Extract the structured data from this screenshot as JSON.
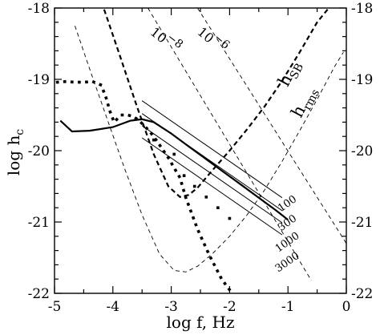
{
  "chart_data": {
    "type": "line",
    "title": "",
    "xlabel": "log  f,  Hz",
    "ylabel": "log  h",
    "ylabel_subscript": "c",
    "xlim": [
      -5,
      0
    ],
    "ylim": [
      -22,
      -18
    ],
    "xticks": [
      "-5",
      "-4",
      "-3",
      "-2",
      "-1",
      "0"
    ],
    "yticks_left": [
      "-18",
      "-19",
      "-20",
      "-21",
      "-22"
    ],
    "yticks_right": [
      "-18",
      "-19",
      "-20",
      "-21",
      "-22"
    ],
    "grid": false,
    "legend": "none",
    "series": [
      {
        "style": "solid-thick",
        "x": [
          -4.9,
          -4.7,
          -4.4,
          -4.0,
          -3.7,
          -3.5,
          -3.3,
          -3.0,
          -2.7,
          -2.4,
          -2.1,
          -1.8,
          -1.5,
          -1.2,
          -1.0
        ],
        "y": [
          -19.58,
          -19.73,
          -19.72,
          -19.67,
          -19.58,
          -19.56,
          -19.6,
          -19.76,
          -19.94,
          -20.12,
          -20.3,
          -20.48,
          -20.66,
          -20.84,
          -20.97
        ]
      },
      {
        "style": "dotted-thick",
        "x": [
          -4.95,
          -4.8,
          -4.65,
          -4.5,
          -4.35,
          -4.2,
          -4.12,
          -4.05,
          -3.98,
          -3.92,
          -3.85,
          -3.75,
          -3.65,
          -3.55,
          -3.45,
          -3.35,
          -3.25,
          -3.15,
          -3.05,
          -2.95,
          -2.85,
          -2.75,
          -2.65,
          -2.55,
          -2.45,
          -2.35,
          -2.25,
          -2.15,
          -2.05,
          -1.95
        ],
        "y": [
          -19.04,
          -19.03,
          -19.04,
          -19.04,
          -19.03,
          -19.08,
          -19.25,
          -19.45,
          -19.6,
          -19.55,
          -19.5,
          -19.5,
          -19.52,
          -19.58,
          -19.66,
          -19.75,
          -19.86,
          -19.98,
          -20.1,
          -20.24,
          -20.38,
          -20.66,
          -20.88,
          -21.1,
          -21.28,
          -21.46,
          -21.62,
          -21.78,
          -21.9,
          -22.0
        ]
      },
      {
        "style": "dotted-scatter",
        "x": [
          -3.3,
          -2.95,
          -2.78,
          -2.6,
          -2.4,
          -2.2,
          -2.0
        ],
        "y": [
          -19.85,
          -20.05,
          -20.35,
          -20.5,
          -20.65,
          -20.8,
          -20.95
        ]
      },
      {
        "name": "h_SB",
        "style": "dashed-thick",
        "x": [
          -4.15,
          -3.9,
          -3.6,
          -3.3,
          -3.05,
          -2.85,
          -2.7,
          -2.55,
          -2.3,
          -2.0,
          -1.7,
          -1.4,
          -1.1,
          -0.8,
          -0.5,
          -0.25
        ],
        "y": [
          -18.02,
          -18.62,
          -19.35,
          -20.05,
          -20.5,
          -20.65,
          -20.62,
          -20.52,
          -20.28,
          -20.0,
          -19.7,
          -19.38,
          -19.02,
          -18.62,
          -18.2,
          -17.95
        ]
      },
      {
        "name": "h_rms",
        "style": "dashed-thin",
        "x": [
          -4.65,
          -4.4,
          -4.1,
          -3.8,
          -3.5,
          -3.2,
          -2.95,
          -2.75,
          -2.55,
          -2.3,
          -2.0,
          -1.7,
          -1.4,
          -1.1,
          -0.8,
          -0.5,
          -0.2,
          -0.05
        ],
        "y": [
          -18.25,
          -18.85,
          -19.55,
          -20.25,
          -20.9,
          -21.45,
          -21.68,
          -21.7,
          -21.62,
          -21.45,
          -21.2,
          -20.9,
          -20.55,
          -20.15,
          -19.72,
          -19.28,
          -18.82,
          -18.62
        ]
      },
      {
        "name": "10^-8",
        "style": "dashed-thin",
        "x": [
          -3.4,
          -0.6
        ],
        "y": [
          -18.0,
          -21.82
        ]
      },
      {
        "name": "10^-6",
        "style": "dashed-thin",
        "x": [
          -2.55,
          0.0
        ],
        "y": [
          -18.0,
          -21.3
        ]
      },
      {
        "name": "100",
        "style": "solid-thin",
        "x": [
          -3.5,
          -1.1
        ],
        "y": [
          -19.3,
          -20.66
        ]
      },
      {
        "name": "300",
        "style": "solid-thin",
        "x": [
          -3.5,
          -1.1
        ],
        "y": [
          -19.48,
          -20.84
        ]
      },
      {
        "name": "1000",
        "style": "solid-thin",
        "x": [
          -3.5,
          -1.1
        ],
        "y": [
          -19.65,
          -21.01
        ]
      },
      {
        "name": "3000",
        "style": "solid-thin",
        "x": [
          -3.5,
          -1.1
        ],
        "y": [
          -19.82,
          -21.18
        ]
      }
    ],
    "annotations": [
      {
        "text": "10",
        "sup": "−8",
        "x": -3.15,
        "y": -18.5,
        "rotate": 38
      },
      {
        "text": "10",
        "sup": "−6",
        "x": -2.35,
        "y": -18.5,
        "rotate": 40
      },
      {
        "text": "h",
        "sub": "SB",
        "x": -0.9,
        "y": -18.95,
        "rotate": -62
      },
      {
        "text": "h",
        "sub": "rms",
        "x": -0.65,
        "y": -19.35,
        "rotate": -62
      },
      {
        "text": "100",
        "x": -0.98,
        "y": -20.78,
        "rotate": -35
      },
      {
        "text": "300",
        "x": -0.98,
        "y": -21.05,
        "rotate": -35
      },
      {
        "text": "1000",
        "x": -0.98,
        "y": -21.32,
        "rotate": -35
      },
      {
        "text": "3000",
        "x": -0.98,
        "y": -21.6,
        "rotate": -35
      }
    ]
  }
}
